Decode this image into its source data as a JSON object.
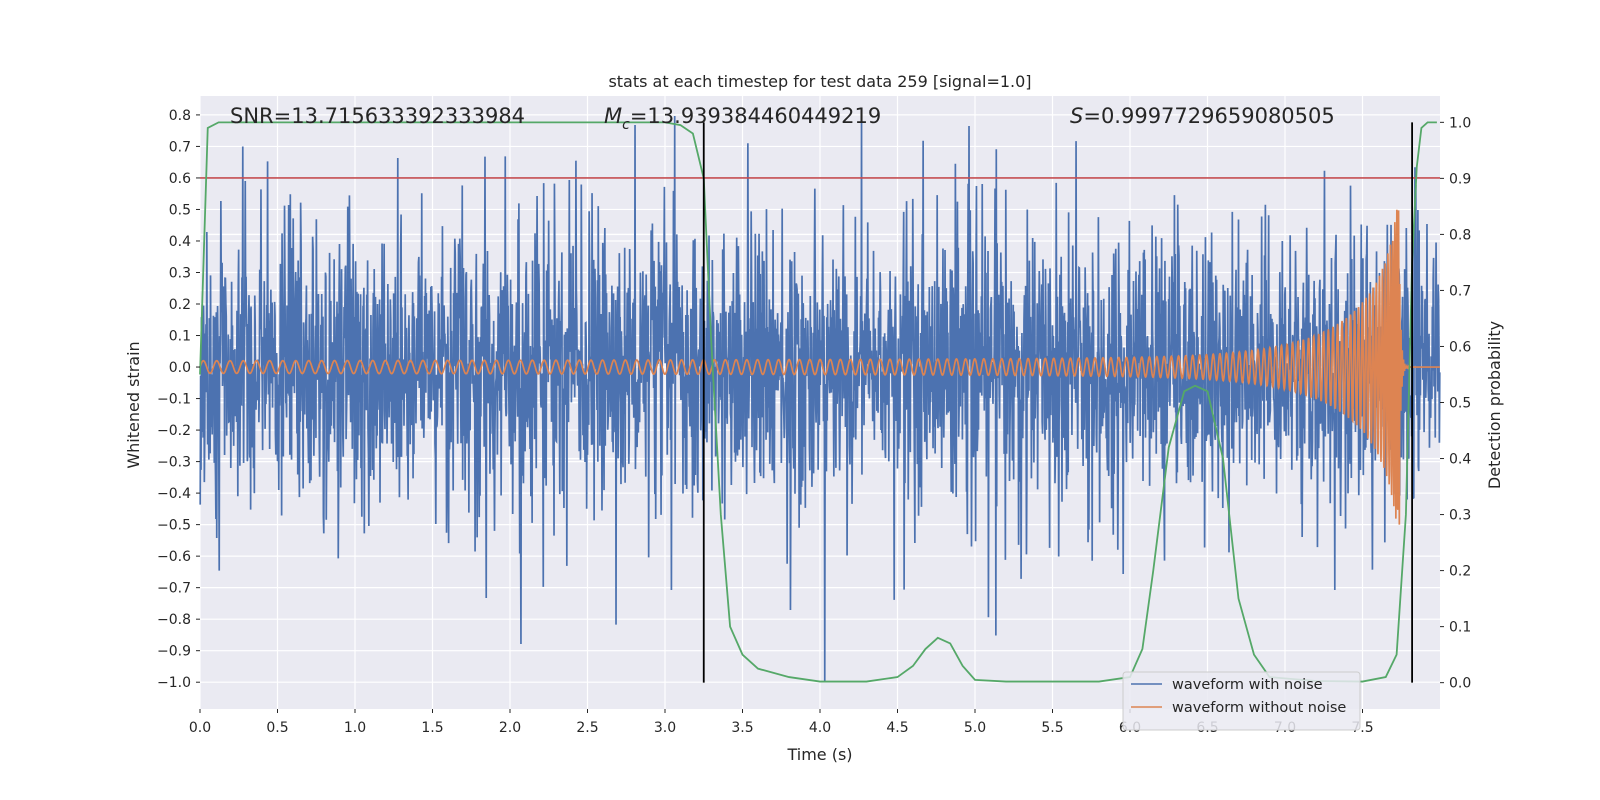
{
  "chart_data": {
    "type": "line",
    "title": "stats at each timestep for test data 259 [signal=1.0]",
    "xlabel": "Time (s)",
    "ylabel": "Whitened strain",
    "y2label": "Detection probability",
    "xlim": [
      0.0,
      8.0
    ],
    "ylim": [
      -1.085,
      0.86
    ],
    "y2lim": [
      -0.047,
      1.047
    ],
    "xticks": [
      "0.0",
      "0.5",
      "1.0",
      "1.5",
      "2.0",
      "2.5",
      "3.0",
      "3.5",
      "4.0",
      "4.5",
      "5.0",
      "5.5",
      "6.0",
      "6.5",
      "7.0",
      "7.5"
    ],
    "yticks": [
      "0.8",
      "0.7",
      "0.6",
      "0.5",
      "0.4",
      "0.3",
      "0.2",
      "0.1",
      "0.0",
      "-0.1",
      "-0.2",
      "-0.3",
      "-0.4",
      "-0.5",
      "-0.6",
      "-0.7",
      "-0.8",
      "-0.9",
      "-1.0"
    ],
    "y2ticks": [
      "1.0",
      "0.9",
      "0.8",
      "0.7",
      "0.6",
      "0.5",
      "0.4",
      "0.3",
      "0.2",
      "0.1",
      "0.0"
    ],
    "grid": true,
    "legend_position": "lower-right",
    "annotations": {
      "snr": "SNR=13.715633392333984",
      "mc_symbol": "M",
      "mc_sub": "c",
      "mc_value": "=13.939384460449219",
      "s_symbol": "S",
      "s_value": "=0.9997729659080505"
    },
    "series": [
      {
        "name": "waveform with noise",
        "color": "#4c72b0",
        "envelope_typical": 0.4,
        "envelope_peak_max": 0.8,
        "envelope_trough_min": -1.0
      },
      {
        "name": "waveform without noise",
        "color": "#dd8452",
        "amplitude_start": 0.02,
        "amplitude_peak": 0.5,
        "merger_time": 7.74,
        "cycles": 140
      }
    ],
    "detection_probability": {
      "color": "#55a868",
      "x": [
        0.0,
        0.05,
        0.12,
        0.5,
        1.0,
        1.5,
        2.0,
        2.5,
        3.0,
        3.1,
        3.18,
        3.25,
        3.3,
        3.36,
        3.42,
        3.5,
        3.6,
        3.8,
        4.0,
        4.3,
        4.5,
        4.6,
        4.68,
        4.76,
        4.84,
        4.92,
        5.0,
        5.2,
        5.5,
        5.8,
        6.0,
        6.08,
        6.15,
        6.25,
        6.35,
        6.42,
        6.5,
        6.6,
        6.7,
        6.8,
        6.9,
        7.2,
        7.5,
        7.65,
        7.72,
        7.78,
        7.82,
        7.85,
        7.88,
        7.92,
        7.98
      ],
      "y": [
        0.55,
        0.99,
        1.0,
        1.0,
        1.0,
        1.0,
        1.0,
        1.0,
        1.0,
        0.995,
        0.98,
        0.9,
        0.6,
        0.3,
        0.1,
        0.05,
        0.025,
        0.01,
        0.002,
        0.002,
        0.01,
        0.03,
        0.06,
        0.08,
        0.07,
        0.03,
        0.005,
        0.002,
        0.002,
        0.002,
        0.01,
        0.06,
        0.2,
        0.42,
        0.52,
        0.53,
        0.52,
        0.4,
        0.15,
        0.05,
        0.01,
        0.003,
        0.002,
        0.01,
        0.05,
        0.3,
        0.75,
        0.92,
        0.99,
        1.0,
        1.0
      ]
    },
    "threshold": {
      "value": 0.6,
      "color": "#c44e52"
    },
    "vertical_markers": [
      3.25,
      7.82
    ],
    "white_hlines_y2": [
      0.8,
      0.7,
      0.6,
      0.5,
      0.4
    ]
  }
}
